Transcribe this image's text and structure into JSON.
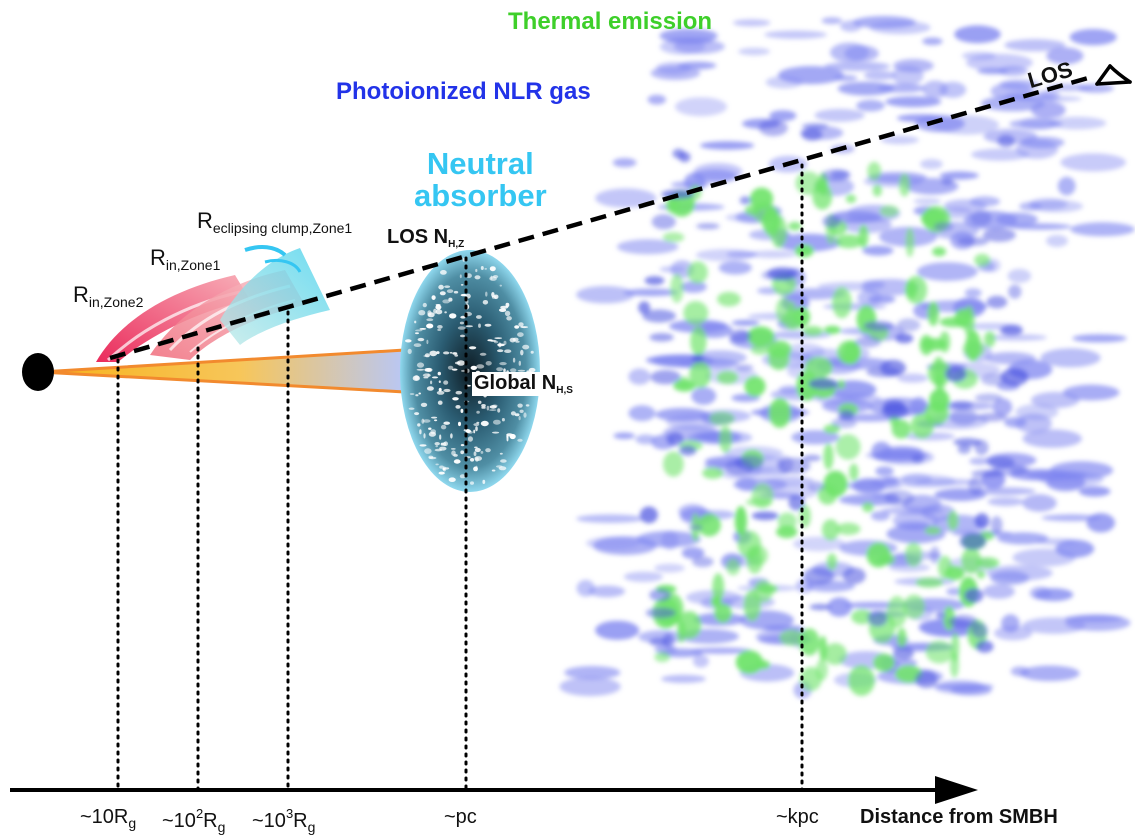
{
  "labels": {
    "thermal": "Thermal emission",
    "nlr": "Photoionized NLR gas",
    "neutral_line1": "Neutral",
    "neutral_line2": "absorber",
    "r_eclipse_main": "R",
    "r_eclipse_sub": "eclipsing clump,Zone1",
    "r_in1_main": "R",
    "r_in1_sub": "in,Zone1",
    "r_in2_main": "R",
    "r_in2_sub": "in,Zone2",
    "los_nhz_main": "LOS N",
    "los_nhz_sub": "H,Z",
    "global_main": "Global N",
    "global_sub": "H,S",
    "los": "LOS"
  },
  "axis": {
    "title": "Distance from SMBH",
    "ticks": [
      {
        "pre": "~10R",
        "sup": "",
        "sub": "g"
      },
      {
        "pre": "~10",
        "sup": "2",
        "post": "R",
        "sub": "g"
      },
      {
        "pre": "~10",
        "sup": "3",
        "post": "R",
        "sub": "g"
      },
      {
        "pre": "~pc"
      },
      {
        "pre": "~kpc"
      }
    ]
  },
  "colors": {
    "thermal": "#3ecf2a",
    "nlr": "#2233e8",
    "neutral": "#35c6f2",
    "nlr_cloud": "#7f86f0",
    "thermal_cloud": "#6fe36a",
    "absorber_dark": "#1f4e63"
  }
}
